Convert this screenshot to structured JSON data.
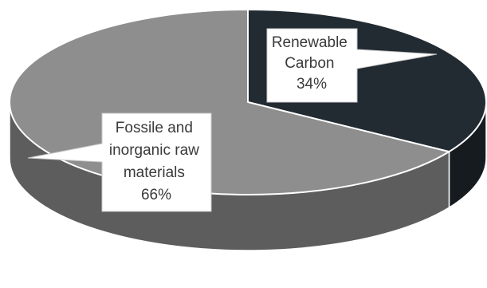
{
  "chart_data": {
    "type": "pie",
    "title": "",
    "style": "3d",
    "slices": [
      {
        "label_lines": [
          "Renewable",
          "Carbon"
        ],
        "percent_label": "34%",
        "value": 34,
        "color": "#222a32"
      },
      {
        "label_lines": [
          "Fossile and",
          "inorganic raw",
          "materials"
        ],
        "percent_label": "66%",
        "value": 66,
        "color": "#8e8e8e"
      }
    ],
    "side_colors": {
      "Renewable Carbon": "#161b20",
      "Fossile and inorganic raw materials": "#5d5d5d"
    },
    "edge_color": "#ffffff"
  }
}
